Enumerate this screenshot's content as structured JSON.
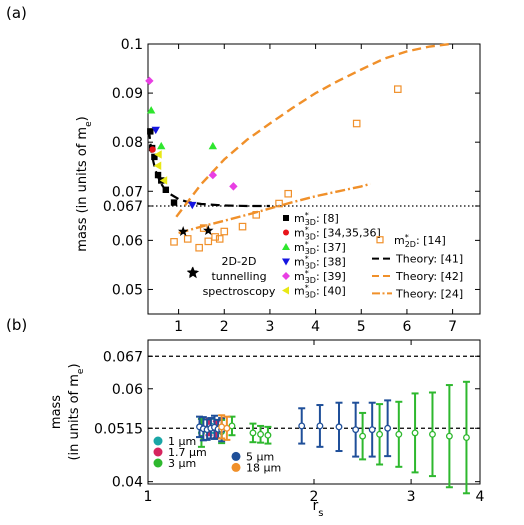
{
  "chart_data": [
    {
      "panel": "(a)",
      "type": "scatter",
      "xlabel": "",
      "ylabel": "mass (in units of m",
      "ylabel_sub": "e",
      "xlim": [
        0.33,
        7.6
      ],
      "ylim": [
        0.045,
        0.1
      ],
      "x_ticks": [
        "1",
        "2",
        "3",
        "4",
        "5",
        "6",
        "7"
      ],
      "x_tick_values": [
        1,
        2,
        3,
        4,
        5,
        6,
        7
      ],
      "y_ticks": [
        "0.05",
        "0.06",
        "0.067",
        "0.07",
        "0.08",
        "0.09",
        "0.1"
      ],
      "y_tick_values": [
        0.05,
        0.06,
        0.067,
        0.07,
        0.08,
        0.09,
        0.1
      ],
      "reference_line": {
        "y": 0.067,
        "style": "dotted"
      },
      "annotation": [
        "2D-2D",
        "tunnelling",
        "spectroscopy"
      ],
      "legend_prefix_3d": "m",
      "legend_prefix_2d": "m",
      "legend_sup": "*",
      "legend_sub_3d": "3D",
      "legend_sub_2d": "2D",
      "series": [
        {
          "name": ": [8]",
          "marker": "square",
          "color": "#000000",
          "x": [
            0.38,
            0.42,
            0.47,
            0.55,
            0.62,
            0.72,
            0.9
          ],
          "y": [
            0.0822,
            0.0788,
            0.077,
            0.0733,
            0.0722,
            0.0703,
            0.0677
          ]
        },
        {
          "name": ": [34,35,36]",
          "marker": "circle",
          "color": "#e8141b",
          "x": [
            0.43
          ],
          "y": [
            0.0785
          ]
        },
        {
          "name": ": [37]",
          "marker": "triangle-up",
          "color": "#2ee62e",
          "x": [
            0.4,
            0.62,
            1.75
          ],
          "y": [
            0.0865,
            0.0792,
            0.0792
          ]
        },
        {
          "name": ": [38]",
          "marker": "triangle-down",
          "color": "#1515e0",
          "x": [
            0.5,
            1.3
          ],
          "y": [
            0.0825,
            0.0672
          ]
        },
        {
          "name": ": [39]",
          "marker": "diamond",
          "color": "#e83fe3",
          "x": [
            0.36,
            1.75,
            2.2
          ],
          "y": [
            0.0925,
            0.0733,
            0.071
          ]
        },
        {
          "name": ": [40]",
          "marker": "triangle-left",
          "color": "#e8e815",
          "x": [
            0.56,
            0.68,
            0.55
          ],
          "y": [
            0.0775,
            0.0722,
            0.0752
          ]
        },
        {
          "name": ": [14]",
          "marker": "open-square",
          "color": "#f0902a",
          "x": [
            0.9,
            1.2,
            1.45,
            1.55,
            1.65,
            1.8,
            1.9,
            2.0,
            2.4,
            2.7,
            3.2,
            3.4,
            4.9,
            5.8
          ],
          "y": [
            0.0597,
            0.0603,
            0.0585,
            0.0625,
            0.0598,
            0.0607,
            0.0603,
            0.0618,
            0.0628,
            0.0652,
            0.0675,
            0.0695,
            0.0838,
            0.0908
          ]
        },
        {
          "name": "2D-2D tunnelling spectroscopy",
          "marker": "star",
          "color": "#000000",
          "x": [
            1.1,
            1.3,
            1.65
          ],
          "y": [
            0.0618,
            0.0535,
            0.062
          ]
        }
      ],
      "theory": [
        {
          "name": "Theory: [41]",
          "style": "dashed",
          "color": "#000000",
          "x": [
            0.35,
            0.4,
            0.45,
            0.5,
            0.6,
            0.7,
            0.8,
            1.0,
            1.2,
            1.5,
            2.0,
            2.5,
            3.0
          ],
          "y": [
            0.0825,
            0.0784,
            0.0759,
            0.0741,
            0.0718,
            0.0704,
            0.0695,
            0.0684,
            0.0678,
            0.0674,
            0.0671,
            0.067,
            0.067
          ]
        },
        {
          "name": "Theory: [42]",
          "style": "dashed",
          "color": "#f0902a",
          "x": [
            0.95,
            1.5,
            2.0,
            2.5,
            3.0,
            3.5,
            4.0,
            4.5,
            5.0,
            5.5,
            6.0,
            6.5,
            6.95
          ],
          "y": [
            0.0648,
            0.0715,
            0.0765,
            0.0805,
            0.0838,
            0.087,
            0.09,
            0.0925,
            0.0948,
            0.097,
            0.0985,
            0.0995,
            0.1
          ]
        },
        {
          "name": "Theory: [24]",
          "style": "dash-dot",
          "color": "#f0902a",
          "x": [
            1.0,
            1.5,
            2.0,
            2.5,
            3.0,
            3.5,
            4.0,
            4.5,
            5.0,
            5.2
          ],
          "y": [
            0.0615,
            0.0628,
            0.064,
            0.0652,
            0.0665,
            0.0678,
            0.069,
            0.07,
            0.071,
            0.0715
          ]
        }
      ]
    },
    {
      "panel": "(b)",
      "type": "scatter",
      "xscale": "log",
      "xlabel": "r",
      "xlabel_sub": "s",
      "ylabel_lines": [
        "mass",
        "(in units of m"
      ],
      "ylabel_sub": "e",
      "xlim": [
        1,
        4
      ],
      "ylim": [
        0.0395,
        0.0705
      ],
      "x_ticks": [
        "1",
        "2",
        "3",
        "4"
      ],
      "x_tick_values": [
        1,
        2,
        3,
        4
      ],
      "y_ticks": [
        "0.04",
        "0.0515",
        "0.06",
        "0.067"
      ],
      "y_tick_values": [
        0.04,
        0.0515,
        0.06,
        0.067
      ],
      "reference_lines": [
        {
          "y": 0.067,
          "style": "dashed"
        },
        {
          "y": 0.0515,
          "style": "dashed"
        }
      ],
      "series": [
        {
          "name": "1 μm",
          "color": "#1aa6a6",
          "x": [
            1.3
          ],
          "y": [
            0.052
          ],
          "err": [
            0.0015
          ]
        },
        {
          "name": "1.7 μm",
          "color": "#d6245e",
          "x": [
            1.29,
            1.33
          ],
          "y": [
            0.0518,
            0.0512
          ],
          "err": [
            0.0018,
            0.0018
          ]
        },
        {
          "name": "3 μm",
          "color": "#2eb82e",
          "x": [
            1.25,
            1.36,
            1.42,
            1.55,
            1.6,
            1.65,
            2.45,
            2.63,
            2.85,
            3.05,
            3.28,
            3.52,
            3.78
          ],
          "y": [
            0.0505,
            0.0508,
            0.052,
            0.0505,
            0.0502,
            0.05,
            0.0498,
            0.0502,
            0.0502,
            0.0505,
            0.0502,
            0.0498,
            0.0495
          ],
          "err": [
            0.003,
            0.0025,
            0.002,
            0.002,
            0.0018,
            0.0018,
            0.005,
            0.0065,
            0.007,
            0.0085,
            0.009,
            0.011,
            0.012
          ]
        },
        {
          "name": "5 μm",
          "color": "#1f4f99",
          "x": [
            1.24,
            1.26,
            1.28,
            1.3,
            1.32,
            1.34,
            1.36,
            1.9,
            2.05,
            2.22,
            2.38,
            2.55,
            2.72
          ],
          "y": [
            0.0518,
            0.0514,
            0.0512,
            0.0515,
            0.0517,
            0.0513,
            0.0512,
            0.052,
            0.052,
            0.0518,
            0.0512,
            0.0512,
            0.0515
          ],
          "err": [
            0.0022,
            0.0025,
            0.0022,
            0.0022,
            0.0025,
            0.002,
            0.0025,
            0.0038,
            0.0045,
            0.0052,
            0.0058,
            0.0058,
            0.006
          ]
        },
        {
          "name": "18 μm",
          "color": "#f0902a",
          "x": [
            1.36,
            1.39
          ],
          "y": [
            0.0518,
            0.0515
          ],
          "err": [
            0.0025,
            0.0025
          ]
        }
      ]
    }
  ]
}
